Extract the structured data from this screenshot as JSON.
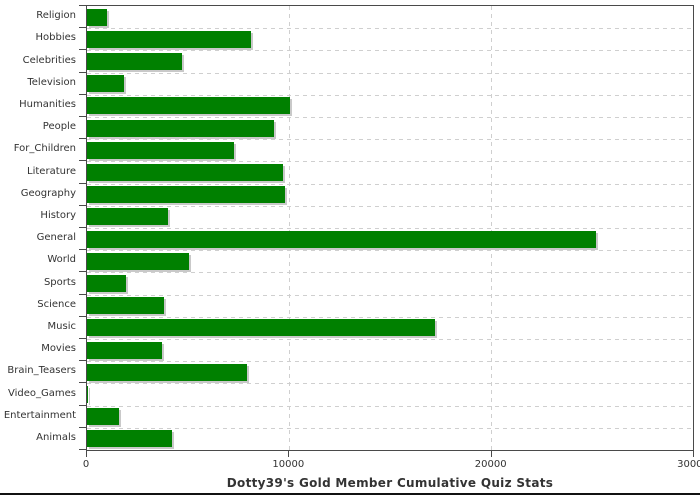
{
  "chart_data": {
    "type": "bar",
    "orientation": "horizontal",
    "title": "Dotty39's Gold Member Cumulative Quiz Stats",
    "categories": [
      "Religion",
      "Hobbies",
      "Celebrities",
      "Television",
      "Humanities",
      "People",
      "For_Children",
      "Literature",
      "Geography",
      "History",
      "General",
      "World",
      "Sports",
      "Science",
      "Music",
      "Movies",
      "Brain_Teasers",
      "Video_Games",
      "Entertainment",
      "Animals"
    ],
    "values": [
      1000,
      8100,
      4700,
      1850,
      10050,
      9270,
      7300,
      9700,
      9800,
      4000,
      25200,
      5040,
      1940,
      3800,
      17250,
      3700,
      7940,
      50,
      1600,
      4200
    ],
    "xlim": [
      0,
      30000
    ],
    "x_ticks": [
      0,
      10000,
      20000,
      30000
    ],
    "x_tick_labels": [
      "0",
      "10000",
      "20000",
      "30000"
    ],
    "grid": true,
    "legend": "none",
    "colors": {
      "bar": "#008000",
      "bar_shadow": "#c9c9c9",
      "grid": "#cfcfcf",
      "axis": "#4a4a4a",
      "text": "#333333",
      "background": "#ffffff",
      "bottom_rule": "#111111"
    }
  }
}
